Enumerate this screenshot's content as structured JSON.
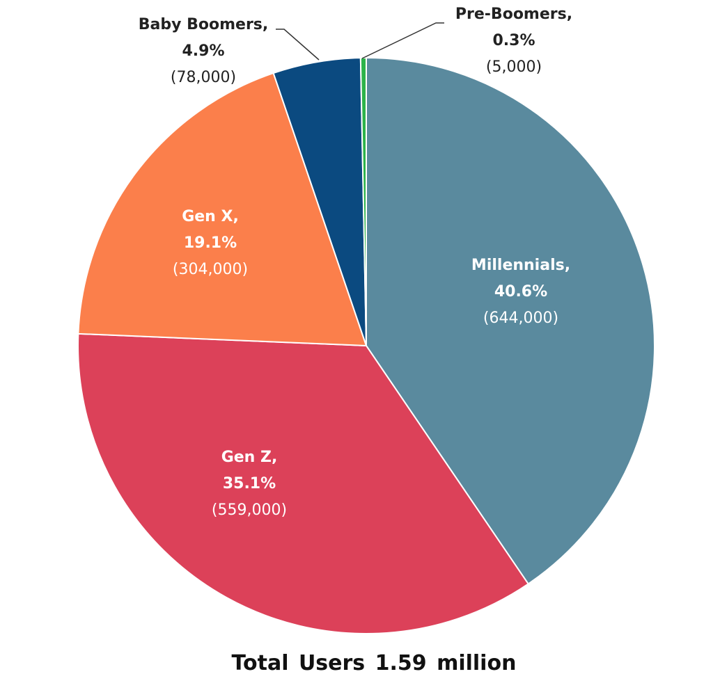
{
  "chart_data": {
    "type": "pie",
    "title": "",
    "total_label": "Total Users 1.59 million",
    "slices": [
      {
        "label": "Millennials,",
        "percent_text": "40.6%",
        "value_text": "(644,000)",
        "percent": 40.6,
        "value": 644000,
        "color": "#5a8a9e"
      },
      {
        "label": "Gen Z,",
        "percent_text": "35.1%",
        "value_text": "(559,000)",
        "percent": 35.1,
        "value": 559000,
        "color": "#dc4159"
      },
      {
        "label": "Gen X,",
        "percent_text": "19.1%",
        "value_text": "(304,000)",
        "percent": 19.1,
        "value": 304000,
        "color": "#fb7f4b"
      },
      {
        "label": "Baby Boomers,",
        "percent_text": "4.9%",
        "value_text": "(78,000)",
        "percent": 4.9,
        "value": 78000,
        "color": "#0b4a80"
      },
      {
        "label": "Pre-Boomers,",
        "percent_text": "0.3%",
        "value_text": "(5,000)",
        "percent": 0.3,
        "value": 5000,
        "color": "#2db34a"
      }
    ]
  }
}
